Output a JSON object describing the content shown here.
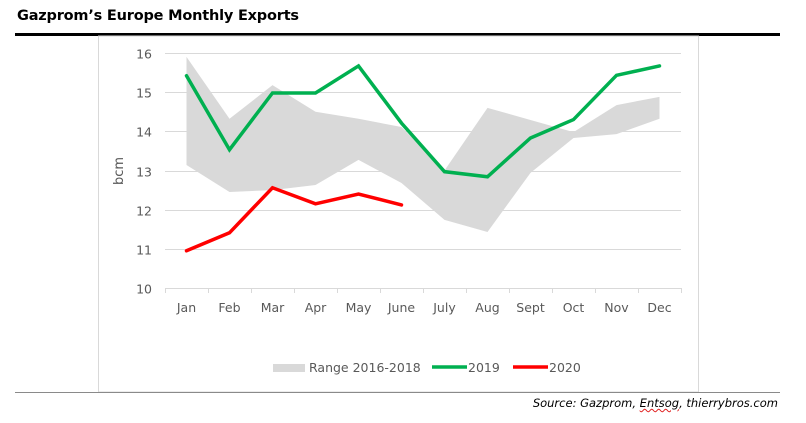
{
  "page": {
    "title": "Gazprom’s Europe Monthly Exports",
    "source_prefix": "Source: Gazprom, ",
    "source_spell": "Entsog",
    "source_suffix": ", thierrybros.com"
  },
  "chart_data": {
    "type": "line",
    "title": "Gazprom’s Europe Monthly Exports",
    "xlabel": "",
    "ylabel": "bcm",
    "ylim": [
      10,
      16
    ],
    "yticks": [
      10,
      11,
      12,
      13,
      14,
      15,
      16
    ],
    "grid": true,
    "legend_position": "bottom",
    "categories": [
      "Jan",
      "Feb",
      "Mar",
      "Apr",
      "May",
      "June",
      "July",
      "Aug",
      "Sept",
      "Oct",
      "Nov",
      "Dec"
    ],
    "range": {
      "name": "Range 2016-2018",
      "color": "#d9d9d9",
      "upper": [
        15.9,
        14.32,
        15.18,
        14.5,
        14.32,
        14.11,
        13.0,
        14.6,
        14.29,
        13.98,
        14.67,
        14.88
      ],
      "lower": [
        13.14,
        12.45,
        12.5,
        12.63,
        13.27,
        12.68,
        11.74,
        11.43,
        12.94,
        13.83,
        13.93,
        14.32
      ]
    },
    "series": [
      {
        "name": "2019",
        "color": "#00b050",
        "values": [
          15.42,
          13.53,
          14.98,
          14.98,
          15.67,
          14.21,
          12.97,
          12.84,
          13.83,
          14.3,
          15.43,
          15.67
        ]
      },
      {
        "name": "2020",
        "color": "#ff0000",
        "values": [
          10.95,
          11.41,
          12.56,
          12.15,
          12.4,
          12.12,
          null,
          null,
          null,
          null,
          null,
          null
        ]
      }
    ]
  }
}
